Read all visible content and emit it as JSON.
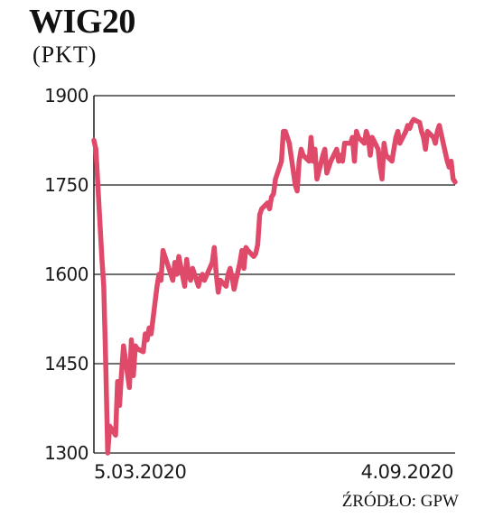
{
  "header": {
    "title": "WIG20",
    "unit": "(PKT)"
  },
  "source": "ŹRÓDŁO: GPW",
  "colors": {
    "line": "#e04a6a",
    "grid": "#1a1a1a",
    "text": "#1a1a1a"
  },
  "chart_data": {
    "type": "line",
    "title": "WIG20",
    "ylabel": "(PKT)",
    "ylim": [
      1300,
      1900
    ],
    "yticks": [
      1900,
      1750,
      1600,
      1450,
      1300
    ],
    "xlim": [
      "2020-03-05",
      "2020-09-04"
    ],
    "x_ticks": [
      "5.03.2020",
      "4.09.2020"
    ],
    "grid": "horizontal",
    "series": [
      {
        "x": [
          "2020-03-05",
          "2020-03-06",
          "2020-03-09",
          "2020-03-10",
          "2020-03-11",
          "2020-03-12",
          "2020-03-13",
          "2020-03-16",
          "2020-03-17",
          "2020-03-18",
          "2020-03-19",
          "2020-03-20",
          "2020-03-23",
          "2020-03-24",
          "2020-03-25",
          "2020-03-26",
          "2020-03-27",
          "2020-03-30",
          "2020-03-31",
          "2020-04-01",
          "2020-04-02",
          "2020-04-03",
          "2020-04-06",
          "2020-04-07",
          "2020-04-08",
          "2020-04-09",
          "2020-04-14",
          "2020-04-15",
          "2020-04-16",
          "2020-04-17",
          "2020-04-20",
          "2020-04-21",
          "2020-04-22",
          "2020-04-23",
          "2020-04-24",
          "2020-04-27",
          "2020-04-28",
          "2020-04-29",
          "2020-04-30",
          "2020-05-04",
          "2020-05-05",
          "2020-05-06",
          "2020-05-07",
          "2020-05-08",
          "2020-05-11",
          "2020-05-12",
          "2020-05-13",
          "2020-05-14",
          "2020-05-15",
          "2020-05-18",
          "2020-05-19",
          "2020-05-20",
          "2020-05-21",
          "2020-05-22",
          "2020-05-25",
          "2020-05-26",
          "2020-05-27",
          "2020-05-28",
          "2020-05-29",
          "2020-06-01",
          "2020-06-02",
          "2020-06-03",
          "2020-06-04",
          "2020-06-05",
          "2020-06-08",
          "2020-06-09",
          "2020-06-10",
          "2020-06-12",
          "2020-06-15",
          "2020-06-16",
          "2020-06-17",
          "2020-06-18",
          "2020-06-19",
          "2020-06-22",
          "2020-06-23",
          "2020-06-24",
          "2020-06-25",
          "2020-06-26",
          "2020-06-29",
          "2020-06-30",
          "2020-07-01",
          "2020-07-02",
          "2020-07-03",
          "2020-07-06",
          "2020-07-07",
          "2020-07-08",
          "2020-07-09",
          "2020-07-10",
          "2020-07-13",
          "2020-07-14",
          "2020-07-15",
          "2020-07-16",
          "2020-07-17",
          "2020-07-20",
          "2020-07-21",
          "2020-07-22",
          "2020-07-23",
          "2020-07-24",
          "2020-07-27",
          "2020-07-28",
          "2020-07-29",
          "2020-07-30",
          "2020-07-31",
          "2020-08-03",
          "2020-08-04",
          "2020-08-05",
          "2020-08-06",
          "2020-08-07",
          "2020-08-10",
          "2020-08-11",
          "2020-08-12",
          "2020-08-13",
          "2020-08-14",
          "2020-08-17",
          "2020-08-18",
          "2020-08-19",
          "2020-08-20",
          "2020-08-21",
          "2020-08-24",
          "2020-08-25",
          "2020-08-26",
          "2020-08-27",
          "2020-08-28",
          "2020-08-31",
          "2020-09-01",
          "2020-09-02",
          "2020-09-03",
          "2020-09-04"
        ],
        "values": [
          1825,
          1810,
          1630,
          1580,
          1450,
          1300,
          1345,
          1330,
          1420,
          1380,
          1435,
          1480,
          1410,
          1490,
          1430,
          1480,
          1475,
          1470,
          1500,
          1490,
          1510,
          1500,
          1580,
          1600,
          1590,
          1640,
          1590,
          1620,
          1600,
          1630,
          1580,
          1625,
          1600,
          1590,
          1610,
          1580,
          1595,
          1600,
          1590,
          1620,
          1645,
          1600,
          1570,
          1590,
          1580,
          1600,
          1610,
          1595,
          1575,
          1620,
          1640,
          1610,
          1645,
          1640,
          1630,
          1635,
          1650,
          1700,
          1710,
          1720,
          1710,
          1730,
          1735,
          1760,
          1790,
          1840,
          1840,
          1820,
          1750,
          1740,
          1790,
          1810,
          1800,
          1790,
          1830,
          1790,
          1810,
          1760,
          1800,
          1810,
          1770,
          1780,
          1790,
          1810,
          1790,
          1800,
          1790,
          1820,
          1820,
          1830,
          1790,
          1840,
          1830,
          1820,
          1840,
          1830,
          1800,
          1830,
          1810,
          1780,
          1760,
          1820,
          1800,
          1790,
          1810,
          1830,
          1840,
          1820,
          1840,
          1850,
          1845,
          1855,
          1860,
          1855,
          1840,
          1830,
          1810,
          1840,
          1830,
          1820,
          1840,
          1850,
          1835,
          1790,
          1780,
          1790,
          1760,
          1755
        ]
      }
    ]
  }
}
